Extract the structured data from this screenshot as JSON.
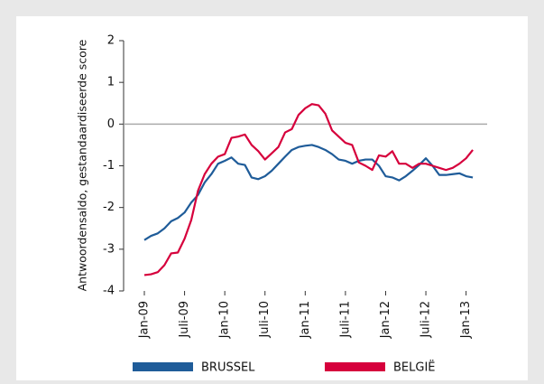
{
  "chart_data": {
    "type": "line",
    "y_label": "Antwoordensaldo, gestandaardiseerde score",
    "categories": [
      "Jan-09",
      null,
      null,
      null,
      null,
      null,
      "Juli-09",
      null,
      null,
      null,
      null,
      null,
      "Jan-10",
      null,
      null,
      null,
      null,
      null,
      "Juli-10",
      null,
      null,
      null,
      null,
      null,
      "Jan-11",
      null,
      null,
      null,
      null,
      null,
      "Juli-11",
      null,
      null,
      null,
      null,
      null,
      "Jan-12",
      null,
      null,
      null,
      null,
      null,
      "Juli-12",
      null,
      null,
      null,
      null,
      null,
      "Jan-13",
      null
    ],
    "series": [
      {
        "name": "BRUSSEL",
        "color": "#1f5c99",
        "values": [
          -2.78,
          -2.68,
          -2.62,
          -2.5,
          -2.33,
          -2.25,
          -2.12,
          -1.88,
          -1.7,
          -1.4,
          -1.2,
          -0.95,
          -0.88,
          -0.8,
          -0.95,
          -0.98,
          -1.28,
          -1.32,
          -1.25,
          -1.12,
          -0.95,
          -0.78,
          -0.62,
          -0.55,
          -0.52,
          -0.5,
          -0.55,
          -0.62,
          -0.72,
          -0.85,
          -0.88,
          -0.95,
          -0.88,
          -0.85,
          -0.85,
          -1.0,
          -1.25,
          -1.28,
          -1.35,
          -1.25,
          -1.12,
          -0.98,
          -0.82,
          -1.0,
          -1.22,
          -1.22,
          -1.2,
          -1.18,
          -1.25,
          -1.28
        ]
      },
      {
        "name": "BELGIË",
        "color": "#d6003c",
        "values": [
          -3.62,
          -3.6,
          -3.55,
          -3.38,
          -3.1,
          -3.08,
          -2.75,
          -2.3,
          -1.6,
          -1.2,
          -0.95,
          -0.78,
          -0.72,
          -0.33,
          -0.3,
          -0.25,
          -0.5,
          -0.65,
          -0.85,
          -0.7,
          -0.55,
          -0.2,
          -0.12,
          0.22,
          0.38,
          0.48,
          0.45,
          0.25,
          -0.15,
          -0.3,
          -0.45,
          -0.5,
          -0.92,
          -1.0,
          -1.1,
          -0.75,
          -0.78,
          -0.65,
          -0.95,
          -0.95,
          -1.05,
          -0.95,
          -0.95,
          -1.0,
          -1.05,
          -1.1,
          -1.05,
          -0.95,
          -0.82,
          -0.62
        ]
      }
    ],
    "ylim": [
      -4,
      2
    ],
    "yticks": [
      2,
      1,
      0,
      -1,
      -2,
      -3,
      -4
    ],
    "zero_line": true,
    "legend": "bottom"
  }
}
